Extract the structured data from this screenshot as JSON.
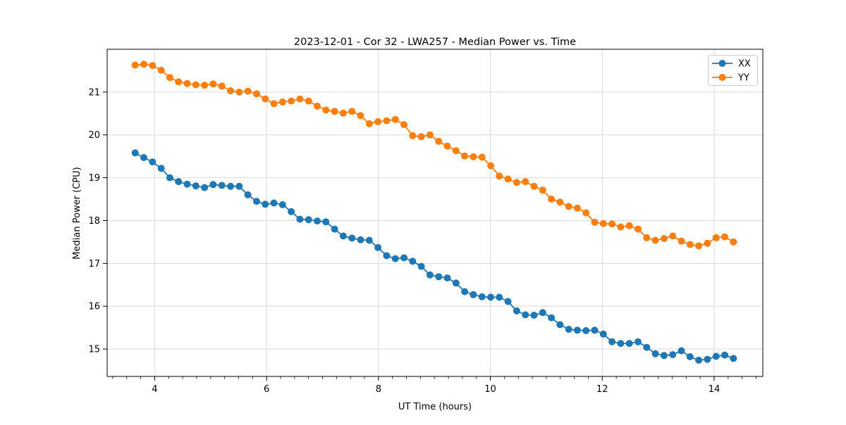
{
  "chart_data": {
    "type": "line",
    "title": "2023-12-01 - Cor 32 - LWA257 - Median Power vs. Time",
    "xlabel": "UT Time (hours)",
    "ylabel": "Median Power (CPU)",
    "xlim": [
      3.15,
      14.87
    ],
    "ylim": [
      14.36,
      22.0
    ],
    "xticks": [
      4,
      6,
      8,
      10,
      12,
      14
    ],
    "x_minor_tick_step": 0.25,
    "yticks": [
      15,
      16,
      17,
      18,
      19,
      20,
      21
    ],
    "grid": true,
    "grid_color": "#d9d9d9",
    "legend_position": "upper right",
    "x_start": 3.65,
    "x_step": 0.155,
    "series": [
      {
        "name": "XX",
        "color": "#1f77b4",
        "values": [
          19.58,
          19.47,
          19.37,
          19.22,
          19.0,
          18.91,
          18.85,
          18.81,
          18.77,
          18.84,
          18.82,
          18.8,
          18.8,
          18.6,
          18.45,
          18.38,
          18.41,
          18.37,
          18.21,
          18.03,
          18.02,
          17.99,
          17.97,
          17.8,
          17.64,
          17.59,
          17.55,
          17.54,
          17.37,
          17.18,
          17.11,
          17.13,
          17.05,
          16.93,
          16.73,
          16.69,
          16.66,
          16.54,
          16.34,
          16.27,
          16.22,
          16.21,
          16.21,
          16.11,
          15.89,
          15.8,
          15.79,
          15.85,
          15.73,
          15.57,
          15.46,
          15.44,
          15.43,
          15.44,
          15.35,
          15.17,
          15.13,
          15.13,
          15.17,
          15.04,
          14.89,
          14.85,
          14.87,
          14.96,
          14.82,
          14.74,
          14.76,
          14.83,
          14.86,
          14.78
        ]
      },
      {
        "name": "YY",
        "color": "#ff7f0e",
        "values": [
          21.63,
          21.65,
          21.62,
          21.51,
          21.34,
          21.24,
          21.2,
          21.17,
          21.16,
          21.19,
          21.14,
          21.03,
          21.0,
          21.02,
          20.96,
          20.84,
          20.73,
          20.77,
          20.79,
          20.84,
          20.79,
          20.67,
          20.58,
          20.55,
          20.51,
          20.55,
          20.45,
          20.26,
          20.31,
          20.33,
          20.36,
          20.24,
          19.98,
          19.96,
          20.0,
          19.85,
          19.74,
          19.63,
          19.51,
          19.49,
          19.48,
          19.28,
          19.04,
          18.97,
          18.89,
          18.91,
          18.8,
          18.71,
          18.5,
          18.43,
          18.33,
          18.29,
          18.18,
          17.96,
          17.93,
          17.92,
          17.85,
          17.88,
          17.8,
          17.6,
          17.54,
          17.58,
          17.64,
          17.52,
          17.44,
          17.41,
          17.47,
          17.6,
          17.62,
          17.5
        ]
      }
    ]
  }
}
